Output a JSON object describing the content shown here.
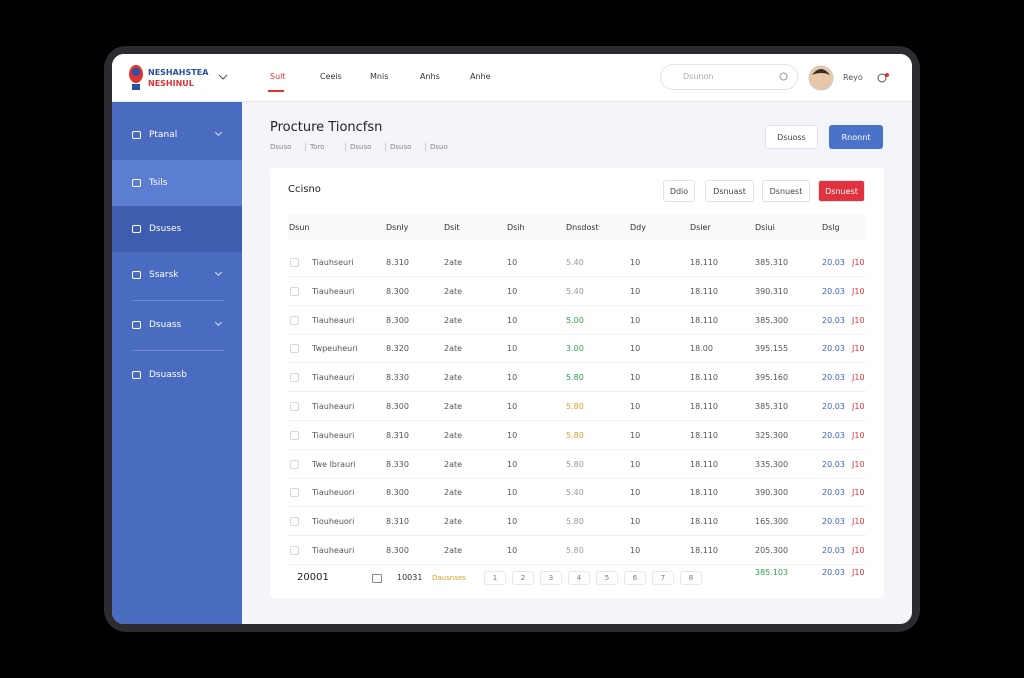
{
  "header": {
    "logo_line1": "NESHAHSTEA",
    "logo_line2": "NESHINUL",
    "nav": [
      "Sult",
      "Ceeis",
      "Mnis",
      "Anhs",
      "Anhe"
    ],
    "search_placeholder": "Dsunon",
    "user_name": "Reyo"
  },
  "sidebar": {
    "items": [
      "Ptanal",
      "Tsils",
      "Dsuses",
      "Ssarsk",
      "Dsuass",
      "Dsuassb"
    ]
  },
  "page": {
    "title": "Procture Tioncfsn",
    "breadcrumb": [
      "Dsuso",
      "Toro",
      "Dsuso",
      "Dsuso",
      "Dsuo"
    ],
    "buttons": [
      "Dsuoss",
      "Rnonnt"
    ]
  },
  "card": {
    "title": "Ccisno",
    "buttons": [
      "Ddio",
      "Dsnuast",
      "Dsnuest",
      "Dsnuest"
    ]
  },
  "table": {
    "columns": [
      "Dsun",
      "Dsnly",
      "Dsit",
      "Dsih",
      "Dnsdost",
      "Ddy",
      "Dsier",
      "Dsiui",
      "Dslg"
    ],
    "rows": [
      {
        "cells": [
          "Tiauhseuri",
          "8.310",
          "2ate",
          "10",
          "5.40",
          "10",
          "18.110",
          "385.310",
          "20.03",
          "J10"
        ],
        "price_color": "#9a9a9a"
      },
      {
        "cells": [
          "Tiauheauri",
          "8.300",
          "2ate",
          "10",
          "5.40",
          "10",
          "18.110",
          "390.310",
          "20.03",
          "J10"
        ],
        "price_color": "#9a9a9a"
      },
      {
        "cells": [
          "Tiauheauri",
          "8.300",
          "2ate",
          "10",
          "5.00",
          "10",
          "18.110",
          "385.300",
          "20.03",
          "J10"
        ],
        "price_color": "#2ea44f"
      },
      {
        "cells": [
          "Twpeuheuri",
          "8.320",
          "2ate",
          "10",
          "3.00",
          "10",
          "18.00",
          "395.155",
          "20.03",
          "J10"
        ],
        "price_color": "#2ea44f"
      },
      {
        "cells": [
          "Tiauheauri",
          "8.330",
          "2ate",
          "10",
          "5.80",
          "10",
          "18.110",
          "395.160",
          "20.03",
          "J10"
        ],
        "price_color": "#2ea44f"
      },
      {
        "cells": [
          "Tiauheauri",
          "8.300",
          "2ate",
          "10",
          "5.80",
          "10",
          "18.110",
          "385.310",
          "20.03",
          "J10"
        ],
        "price_color": "#d9a32b"
      },
      {
        "cells": [
          "Tiauheauri",
          "8.310",
          "2ate",
          "10",
          "5.80",
          "10",
          "18.110",
          "325.300",
          "20.03",
          "J10"
        ],
        "price_color": "#d9a32b"
      },
      {
        "cells": [
          "Twe lbrauri",
          "8.330",
          "2ate",
          "10",
          "5.80",
          "10",
          "18.110",
          "335.300",
          "20.03",
          "J10"
        ],
        "price_color": "#9a9a9a"
      },
      {
        "cells": [
          "Tiauheuori",
          "8.300",
          "2ate",
          "10",
          "5.40",
          "10",
          "18.110",
          "390.300",
          "20.03",
          "J10"
        ],
        "price_color": "#9a9a9a"
      },
      {
        "cells": [
          "Tiouheuori",
          "8.310",
          "2ate",
          "10",
          "5.80",
          "10",
          "18.110",
          "165.300",
          "20.03",
          "J10"
        ],
        "price_color": "#9a9a9a"
      },
      {
        "cells": [
          "Tiauheauri",
          "8.300",
          "2ate",
          "10",
          "5.80",
          "10",
          "18.110",
          "205.300",
          "20.03",
          "J10"
        ],
        "price_color": "#9a9a9a"
      }
    ]
  },
  "footer": {
    "count": "20001",
    "page_size": "10031",
    "page_size_note": "Dausnses",
    "pages": [
      "1",
      "2",
      "3",
      "4",
      "5",
      "6",
      "7",
      "8"
    ],
    "last_value": "385.103",
    "last_value_b": "20.03",
    "last_value_c": "J10"
  }
}
